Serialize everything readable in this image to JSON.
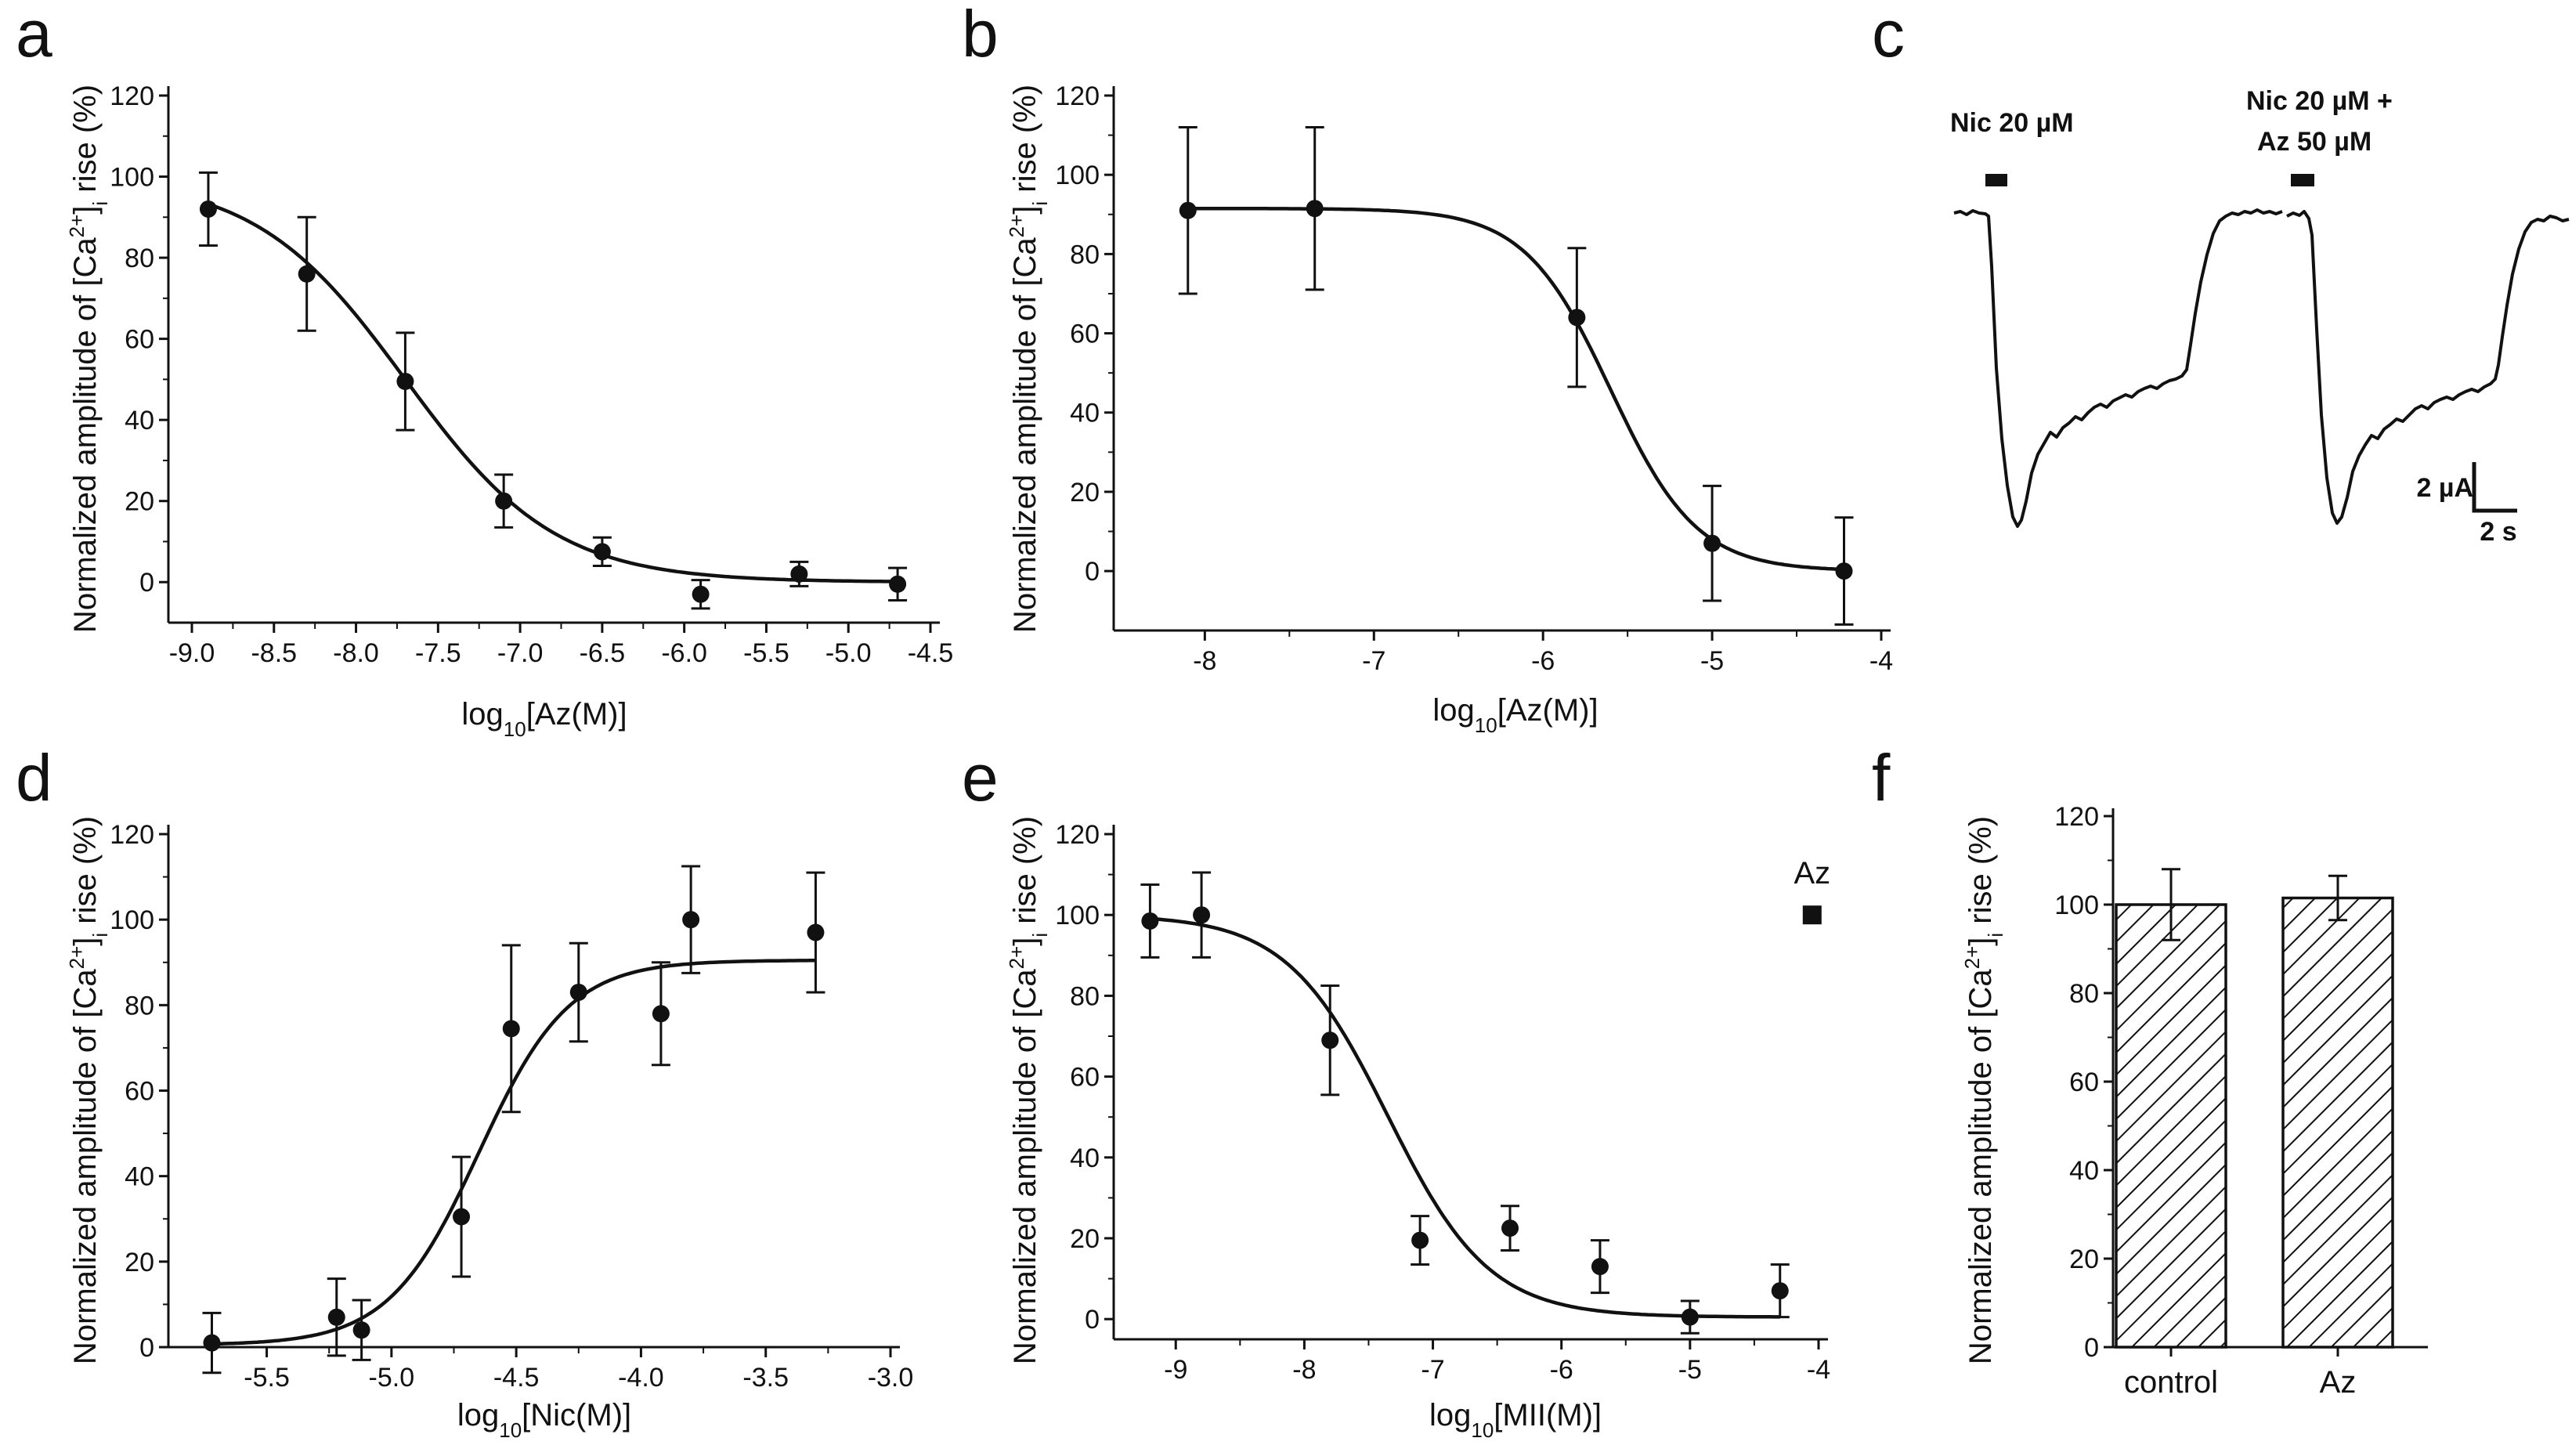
{
  "figure": {
    "x_label_prefix": "log",
    "x_label_sub": "10",
    "y_label_parts": [
      "Normalized amplitude of [Ca",
      "2+",
      "]",
      "i",
      " rise (%)"
    ]
  },
  "chart_data": [
    {
      "panel": "a",
      "type": "scatter",
      "xlabel_arg": "[Az(M)]",
      "xlim": [
        -9.0,
        -4.5
      ],
      "ylim": [
        -10,
        120
      ],
      "xticks": [
        -9.0,
        -8.5,
        -8.0,
        -7.5,
        -7.0,
        -6.5,
        -6.0,
        -5.5,
        -5.0,
        -4.5
      ],
      "xtick_labels": [
        "-9.0",
        "-8.5",
        "-8.0",
        "-7.5",
        "-7.0",
        "-6.5",
        "-6.0",
        "-5.5",
        "-5.0",
        "-4.5"
      ],
      "yticks": [
        0,
        20,
        40,
        60,
        80,
        100,
        120
      ],
      "ytick_labels": [
        "0",
        "20",
        "40",
        "60",
        "80",
        "100",
        "120"
      ],
      "points": [
        {
          "x": -8.9,
          "y": 92,
          "err": 9
        },
        {
          "x": -8.3,
          "y": 76,
          "err": 14
        },
        {
          "x": -7.7,
          "y": 49.5,
          "err": 12
        },
        {
          "x": -7.1,
          "y": 20,
          "err": 6.5
        },
        {
          "x": -6.5,
          "y": 7.5,
          "err": 3.5
        },
        {
          "x": -5.9,
          "y": -3,
          "err": 3.5
        },
        {
          "x": -5.3,
          "y": 2,
          "err": 3
        },
        {
          "x": -4.7,
          "y": -0.5,
          "err": 4
        }
      ],
      "fit": {
        "bottom": 0,
        "top": 100,
        "logEC50": -7.7,
        "hill": -0.95
      }
    },
    {
      "panel": "b",
      "type": "scatter",
      "xlabel_arg": "[Az(M)]",
      "xlim": [
        -8.4,
        -4
      ],
      "ylim": [
        -15,
        120
      ],
      "xticks": [
        -8,
        -7,
        -6,
        -5,
        -4
      ],
      "xtick_labels": [
        "-8",
        "-7",
        "-6",
        "-5",
        "-4"
      ],
      "yticks": [
        0,
        20,
        40,
        60,
        80,
        100,
        120
      ],
      "ytick_labels": [
        "0",
        "20",
        "40",
        "60",
        "80",
        "100",
        "120"
      ],
      "points": [
        {
          "x": -8.1,
          "y": 91,
          "err": 21
        },
        {
          "x": -7.35,
          "y": 91.5,
          "err": 20.5
        },
        {
          "x": -5.8,
          "y": 64,
          "err": 17.5
        },
        {
          "x": -5.0,
          "y": 7,
          "err": 14.5
        },
        {
          "x": -4.22,
          "y": 0,
          "err": 13.5
        }
      ],
      "fit": {
        "bottom": 0,
        "top": 91.5,
        "logEC50": -5.6,
        "hill": -1.7
      }
    },
    {
      "panel": "d",
      "type": "scatter",
      "xlabel_arg": "[Nic(M)]",
      "xlim": [
        -5.8,
        -3.0
      ],
      "ylim": [
        0,
        120
      ],
      "xticks": [
        -5.5,
        -5.0,
        -4.5,
        -4.0,
        -3.5,
        -3.0
      ],
      "xtick_labels": [
        "-5.5",
        "-5.0",
        "-4.5",
        "-4.0",
        "-3.5",
        "-3.0"
      ],
      "yticks": [
        0,
        20,
        40,
        60,
        80,
        100,
        120
      ],
      "ytick_labels": [
        "0",
        "20",
        "40",
        "60",
        "80",
        "100",
        "120"
      ],
      "points": [
        {
          "x": -5.72,
          "y": 1,
          "err": 7
        },
        {
          "x": -5.22,
          "y": 7,
          "err": 9
        },
        {
          "x": -5.12,
          "y": 4,
          "err": 7
        },
        {
          "x": -4.72,
          "y": 30.5,
          "err": 14
        },
        {
          "x": -4.52,
          "y": 74.5,
          "err": 19.5
        },
        {
          "x": -4.25,
          "y": 83,
          "err": 11.5
        },
        {
          "x": -3.92,
          "y": 78,
          "err": 12
        },
        {
          "x": -3.8,
          "y": 100,
          "err": 12.5
        },
        {
          "x": -3.3,
          "y": 97,
          "err": 14
        }
      ],
      "fit": {
        "bottom": 0.5,
        "top": 90.5,
        "logEC50": -4.65,
        "hill": 2.4
      }
    },
    {
      "panel": "e",
      "type": "scatter",
      "xlabel_arg": "[MII(M)]",
      "xlim": [
        -9.3,
        -4
      ],
      "ylim": [
        -5,
        120
      ],
      "xticks": [
        -9,
        -8,
        -7,
        -6,
        -5,
        -4
      ],
      "xtick_labels": [
        "-9",
        "-8",
        "-7",
        "-6",
        "-5",
        "-4"
      ],
      "yticks": [
        0,
        20,
        40,
        60,
        80,
        100,
        120
      ],
      "ytick_labels": [
        "0",
        "20",
        "40",
        "60",
        "80",
        "100",
        "120"
      ],
      "points": [
        {
          "x": -9.2,
          "y": 98.5,
          "err": 9
        },
        {
          "x": -8.8,
          "y": 100,
          "err": 10.5
        },
        {
          "x": -7.8,
          "y": 69,
          "err": 13.5
        },
        {
          "x": -7.1,
          "y": 19.5,
          "err": 6
        },
        {
          "x": -6.4,
          "y": 22.5,
          "err": 5.5
        },
        {
          "x": -5.7,
          "y": 13,
          "err": 6.5
        },
        {
          "x": -5.0,
          "y": 0.5,
          "err": 4
        },
        {
          "x": -4.3,
          "y": 7,
          "err": 6.5
        }
      ],
      "fit": {
        "bottom": 0.5,
        "top": 100,
        "logEC50": -7.35,
        "hill": -1.1
      },
      "annotation": {
        "label": "Az",
        "x": -4.05,
        "y": 100
      }
    },
    {
      "panel": "f",
      "type": "bar",
      "categories": [
        "control",
        "Az"
      ],
      "values": [
        100,
        101.5
      ],
      "errors": [
        8,
        5
      ],
      "ylim": [
        0,
        120
      ],
      "yticks": [
        0,
        20,
        40,
        60,
        80,
        100,
        120
      ],
      "ytick_labels": [
        "0",
        "20",
        "40",
        "60",
        "80",
        "100",
        "120"
      ]
    },
    {
      "panel": "c",
      "type": "trace",
      "traces": [
        {
          "label_lines": [
            "Nic 20 µM"
          ]
        },
        {
          "label_lines": [
            "Nic 20 µM +",
            "Az 50 µM"
          ]
        }
      ],
      "scale_bar": {
        "amplitude_label": "2 µA",
        "time_label": "2 s"
      }
    }
  ]
}
